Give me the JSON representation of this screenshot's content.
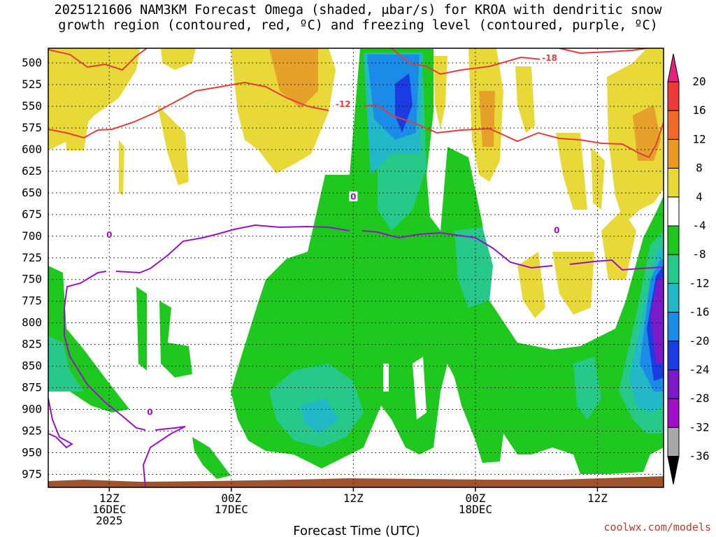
{
  "title_line1": "2025121606 NAM3KM Forecast Omega (shaded, μbar/s) for KROA with dendritic snow",
  "title_line2": "growth region (contoured, red, ºC) and freezing level (contoured, purple, ºC)",
  "x_axis_title": "Forecast Time (UTC)",
  "credit": "coolwx.com/models",
  "chart_data": {
    "type": "heatmap",
    "y_levels": [
      "500",
      "525",
      "550",
      "575",
      "600",
      "625",
      "650",
      "675",
      "700",
      "725",
      "750",
      "775",
      "800",
      "825",
      "850",
      "875",
      "900",
      "925",
      "950",
      "975"
    ],
    "x_ticks": [
      {
        "hour": 6,
        "line1": "12Z",
        "line2": "16DEC",
        "line3": "2025"
      },
      {
        "hour": 18,
        "line1": "00Z",
        "line2": "17DEC",
        "line3": ""
      },
      {
        "hour": 30,
        "line1": "12Z",
        "line2": "",
        "line3": ""
      },
      {
        "hour": 42,
        "line1": "00Z",
        "line2": "18DEC",
        "line3": ""
      },
      {
        "hour": 54,
        "line1": "12Z",
        "line2": "",
        "line3": ""
      }
    ],
    "x_range_hours": [
      0,
      60.5
    ],
    "y_range_hpa": [
      483,
      990
    ],
    "colorbar": {
      "labels": [
        "20",
        "16",
        "12",
        "8",
        "4",
        "-4",
        "-8",
        "-12",
        "-16",
        "-20",
        "-24",
        "-28",
        "-32",
        "-36"
      ],
      "colors": [
        "#e8217d",
        "#ee3a3a",
        "#f06a28",
        "#e89a20",
        "#e8d838",
        "#ffffff",
        "#1ec81e",
        "#26c98a",
        "#22b8c8",
        "#1a8ce8",
        "#1a3ce0",
        "#7a1ac8",
        "#a010c8",
        "#a8a8a8",
        "#000000"
      ]
    },
    "contour_labels": [
      {
        "text": "-18",
        "color": "#e53b3b",
        "hour": 49.3,
        "p": 494
      },
      {
        "text": "-12",
        "color": "#e53b3b",
        "hour": 29.0,
        "p": 547
      },
      {
        "text": "0",
        "color": "#9a10c8",
        "hour": 6.0,
        "p": 698
      },
      {
        "text": "0",
        "color": "#9a10c8",
        "hour": 30.0,
        "p": 654
      },
      {
        "text": "0",
        "color": "#9a10c8",
        "hour": 50.0,
        "p": 693
      },
      {
        "text": "0",
        "color": "#9a10c8",
        "hour": 10.0,
        "p": 903
      }
    ]
  }
}
